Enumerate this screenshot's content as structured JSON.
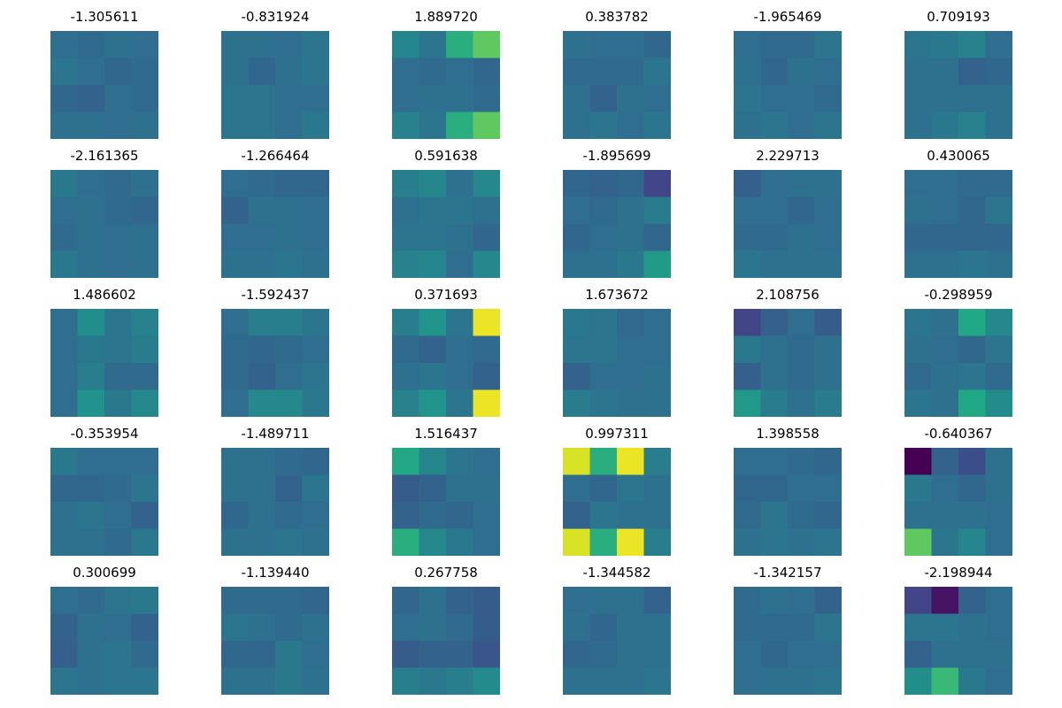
{
  "chart_data": {
    "type": "heatmap",
    "layout": {
      "rows": 5,
      "cols": 6
    },
    "colormap": "viridis",
    "color_range": [
      -3,
      3
    ],
    "grid": false,
    "axes_visible": false,
    "panels": [
      {
        "title": "-1.305611",
        "values": [
          [
            -0.3,
            -0.4,
            -0.2,
            -0.3
          ],
          [
            -0.1,
            -0.3,
            -0.5,
            -0.4
          ],
          [
            -0.5,
            -0.6,
            -0.3,
            -0.4
          ],
          [
            -0.2,
            -0.2,
            -0.3,
            -0.2
          ]
        ]
      },
      {
        "title": "-0.831924",
        "values": [
          [
            -0.2,
            -0.2,
            -0.3,
            -0.1
          ],
          [
            -0.2,
            -0.5,
            -0.2,
            -0.1
          ],
          [
            -0.1,
            -0.1,
            -0.3,
            -0.3
          ],
          [
            -0.1,
            -0.1,
            -0.3,
            0.0
          ]
        ]
      },
      {
        "title": "1.889720",
        "values": [
          [
            0.4,
            -0.1,
            1.6,
            2.1
          ],
          [
            -0.3,
            -0.4,
            -0.3,
            -0.5
          ],
          [
            -0.3,
            -0.2,
            -0.2,
            -0.4
          ],
          [
            0.3,
            -0.1,
            1.6,
            2.1
          ]
        ]
      },
      {
        "title": "0.383782",
        "values": [
          [
            -0.2,
            -0.3,
            -0.3,
            -0.5
          ],
          [
            -0.4,
            -0.4,
            -0.4,
            -0.1
          ],
          [
            -0.2,
            -0.6,
            -0.2,
            -0.3
          ],
          [
            -0.2,
            -0.1,
            -0.3,
            -0.1
          ]
        ]
      },
      {
        "title": "-1.965469",
        "values": [
          [
            -0.3,
            -0.4,
            -0.4,
            -0.1
          ],
          [
            -0.2,
            -0.5,
            -0.2,
            -0.3
          ],
          [
            -0.1,
            -0.3,
            -0.3,
            -0.4
          ],
          [
            -0.2,
            -0.1,
            -0.3,
            -0.1
          ]
        ]
      },
      {
        "title": "0.709193",
        "values": [
          [
            -0.1,
            0.0,
            0.3,
            -0.3
          ],
          [
            -0.2,
            -0.2,
            -0.6,
            -0.5
          ],
          [
            -0.2,
            -0.2,
            -0.2,
            -0.2
          ],
          [
            -0.2,
            0.0,
            0.3,
            -0.2
          ]
        ]
      },
      {
        "title": "-2.161365",
        "values": [
          [
            0.0,
            -0.3,
            -0.4,
            -0.2
          ],
          [
            -0.3,
            -0.2,
            -0.4,
            -0.5
          ],
          [
            -0.4,
            -0.2,
            -0.3,
            -0.2
          ],
          [
            0.0,
            -0.2,
            -0.3,
            -0.2
          ]
        ]
      },
      {
        "title": "-1.266464",
        "values": [
          [
            -0.3,
            -0.4,
            -0.5,
            -0.5
          ],
          [
            -0.6,
            -0.2,
            -0.2,
            -0.3
          ],
          [
            -0.3,
            -0.3,
            -0.2,
            -0.3
          ],
          [
            -0.2,
            -0.2,
            -0.1,
            -0.2
          ]
        ]
      },
      {
        "title": "0.591638",
        "values": [
          [
            0.2,
            0.4,
            -0.2,
            0.5
          ],
          [
            -0.2,
            -0.1,
            -0.1,
            -0.2
          ],
          [
            -0.1,
            -0.1,
            -0.2,
            -0.5
          ],
          [
            0.3,
            0.4,
            -0.3,
            0.5
          ]
        ]
      },
      {
        "title": "-1.895699",
        "values": [
          [
            -0.5,
            -0.6,
            -0.5,
            -1.5
          ],
          [
            -0.3,
            -0.4,
            -0.2,
            0.1
          ],
          [
            -0.5,
            -0.3,
            -0.2,
            -0.5
          ],
          [
            -0.2,
            -0.2,
            0.0,
            1.1
          ]
        ]
      },
      {
        "title": "2.229713",
        "values": [
          [
            -0.7,
            -0.3,
            -0.2,
            -0.2
          ],
          [
            -0.3,
            -0.3,
            -0.5,
            -0.3
          ],
          [
            -0.4,
            -0.4,
            -0.2,
            -0.3
          ],
          [
            -0.1,
            -0.2,
            -0.2,
            -0.2
          ]
        ]
      },
      {
        "title": "0.430065",
        "values": [
          [
            -0.3,
            -0.3,
            -0.4,
            -0.4
          ],
          [
            -0.2,
            -0.3,
            -0.5,
            -0.1
          ],
          [
            -0.5,
            -0.5,
            -0.5,
            -0.5
          ],
          [
            -0.2,
            -0.2,
            -0.1,
            -0.2
          ]
        ]
      },
      {
        "title": "1.486602",
        "values": [
          [
            -0.3,
            0.7,
            -0.1,
            0.3
          ],
          [
            -0.3,
            0.0,
            -0.1,
            0.1
          ],
          [
            -0.3,
            0.2,
            -0.4,
            -0.4
          ],
          [
            -0.3,
            0.8,
            0.0,
            0.5
          ]
        ]
      },
      {
        "title": "-1.592437",
        "values": [
          [
            -0.3,
            0.2,
            0.2,
            -0.1
          ],
          [
            -0.4,
            -0.5,
            -0.4,
            -0.3
          ],
          [
            -0.4,
            -0.6,
            -0.3,
            -0.1
          ],
          [
            -0.3,
            0.5,
            0.5,
            0.0
          ]
        ]
      },
      {
        "title": "0.371693",
        "values": [
          [
            0.2,
            0.9,
            -0.1,
            2.9
          ],
          [
            -0.4,
            -0.6,
            -0.3,
            -0.4
          ],
          [
            -0.2,
            -0.1,
            -0.3,
            -0.6
          ],
          [
            0.3,
            0.9,
            -0.1,
            2.9
          ]
        ]
      },
      {
        "title": "1.673672",
        "values": [
          [
            0.0,
            -0.1,
            -0.4,
            -0.3
          ],
          [
            -0.1,
            -0.1,
            -0.3,
            -0.3
          ],
          [
            -0.6,
            -0.3,
            -0.3,
            -0.2
          ],
          [
            0.1,
            -0.1,
            -0.2,
            -0.2
          ]
        ]
      },
      {
        "title": "2.108756",
        "values": [
          [
            -1.5,
            -0.7,
            -0.3,
            -0.8
          ],
          [
            0.0,
            -0.2,
            -0.4,
            -0.2
          ],
          [
            -0.7,
            -0.2,
            -0.4,
            -0.2
          ],
          [
            1.0,
            0.1,
            -0.2,
            0.1
          ]
        ]
      },
      {
        "title": "-0.298959",
        "values": [
          [
            -0.1,
            -0.2,
            1.5,
            0.5
          ],
          [
            -0.2,
            -0.3,
            -0.5,
            -0.1
          ],
          [
            -0.4,
            -0.2,
            -0.1,
            -0.4
          ],
          [
            -0.1,
            -0.2,
            1.5,
            0.6
          ]
        ]
      },
      {
        "title": "-0.353954",
        "values": [
          [
            0.0,
            -0.3,
            -0.3,
            -0.3
          ],
          [
            -0.5,
            -0.5,
            -0.4,
            -0.1
          ],
          [
            -0.2,
            -0.1,
            -0.3,
            -0.6
          ],
          [
            -0.2,
            -0.2,
            -0.4,
            0.0
          ]
        ]
      },
      {
        "title": "-1.489711",
        "values": [
          [
            -0.2,
            -0.2,
            -0.4,
            -0.5
          ],
          [
            -0.2,
            -0.2,
            -0.6,
            -0.1
          ],
          [
            -0.5,
            -0.2,
            -0.4,
            -0.3
          ],
          [
            -0.2,
            -0.2,
            -0.1,
            -0.2
          ]
        ]
      },
      {
        "title": "1.516437",
        "values": [
          [
            1.5,
            0.4,
            -0.1,
            -0.3
          ],
          [
            -0.8,
            -0.6,
            -0.2,
            -0.2
          ],
          [
            -0.6,
            -0.4,
            -0.5,
            -0.3
          ],
          [
            1.6,
            0.5,
            0.0,
            -0.3
          ]
        ]
      },
      {
        "title": "0.997311",
        "values": [
          [
            2.8,
            1.6,
            2.9,
            0.2
          ],
          [
            -0.3,
            -0.5,
            -0.1,
            -0.2
          ],
          [
            -0.6,
            -0.1,
            -0.2,
            -0.2
          ],
          [
            2.8,
            1.6,
            2.9,
            0.2
          ]
        ]
      },
      {
        "title": "1.398558",
        "values": [
          [
            -0.3,
            -0.3,
            -0.4,
            -0.5
          ],
          [
            -0.5,
            -0.5,
            -0.3,
            -0.3
          ],
          [
            -0.4,
            -0.1,
            -0.4,
            -0.5
          ],
          [
            -0.2,
            -0.1,
            -0.2,
            -0.1
          ]
        ]
      },
      {
        "title": "-0.640367",
        "values": [
          [
            -3.0,
            -0.6,
            -1.2,
            -0.2
          ],
          [
            0.0,
            -0.3,
            -0.5,
            -0.2
          ],
          [
            -0.2,
            -0.2,
            -0.2,
            -0.3
          ],
          [
            2.1,
            -0.1,
            0.4,
            -0.3
          ]
        ]
      },
      {
        "title": "0.300699",
        "values": [
          [
            -0.3,
            -0.4,
            -0.1,
            0.0
          ],
          [
            -0.6,
            -0.2,
            -0.3,
            -0.6
          ],
          [
            -0.7,
            -0.2,
            -0.1,
            -0.4
          ],
          [
            -0.1,
            -0.2,
            -0.1,
            -0.1
          ]
        ]
      },
      {
        "title": "-1.139440",
        "values": [
          [
            -0.4,
            -0.4,
            -0.4,
            -0.5
          ],
          [
            -0.1,
            -0.2,
            -0.4,
            -0.2
          ],
          [
            -0.5,
            -0.5,
            0.0,
            -0.3
          ],
          [
            -0.2,
            -0.2,
            0.0,
            -0.2
          ]
        ]
      },
      {
        "title": "0.267758",
        "values": [
          [
            -0.5,
            -0.2,
            -0.6,
            -0.8
          ],
          [
            -0.3,
            -0.2,
            -0.4,
            -0.8
          ],
          [
            -0.8,
            -0.6,
            -0.6,
            -1.0
          ],
          [
            0.2,
            0.0,
            0.2,
            0.6
          ]
        ]
      },
      {
        "title": "-1.344582",
        "values": [
          [
            -0.3,
            -0.2,
            -0.2,
            -0.6
          ],
          [
            -0.2,
            -0.5,
            -0.2,
            -0.2
          ],
          [
            -0.5,
            -0.4,
            -0.2,
            -0.2
          ],
          [
            -0.2,
            -0.2,
            -0.2,
            -0.1
          ]
        ]
      },
      {
        "title": "-1.342157",
        "values": [
          [
            -0.4,
            -0.2,
            -0.3,
            -0.6
          ],
          [
            -0.4,
            -0.4,
            -0.4,
            -0.1
          ],
          [
            -0.3,
            -0.5,
            -0.3,
            -0.3
          ],
          [
            -0.3,
            -0.2,
            -0.2,
            -0.1
          ]
        ]
      },
      {
        "title": "-2.198944",
        "values": [
          [
            -1.5,
            -2.6,
            -0.6,
            -0.3
          ],
          [
            -0.1,
            -0.1,
            -0.2,
            -0.3
          ],
          [
            -0.6,
            -0.2,
            -0.2,
            -0.2
          ],
          [
            0.7,
            1.8,
            0.0,
            -0.3
          ]
        ]
      }
    ]
  }
}
